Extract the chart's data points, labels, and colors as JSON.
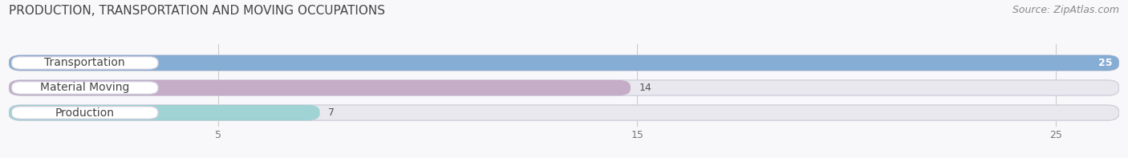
{
  "title": "PRODUCTION, TRANSPORTATION AND MOVING OCCUPATIONS",
  "source": "Source: ZipAtlas.com",
  "categories": [
    "Transportation",
    "Material Moving",
    "Production"
  ],
  "values": [
    25,
    14,
    7
  ],
  "bar_colors": [
    "#6699CC",
    "#BB99BB",
    "#88CCCC"
  ],
  "bar_bg_color": "#E8E8EE",
  "xlim_max": 26.5,
  "xticks": [
    5,
    15,
    25
  ],
  "title_fontsize": 11,
  "source_fontsize": 9,
  "label_fontsize": 10,
  "value_fontsize": 9,
  "tick_fontsize": 9,
  "bg_color": "#F8F8FA"
}
